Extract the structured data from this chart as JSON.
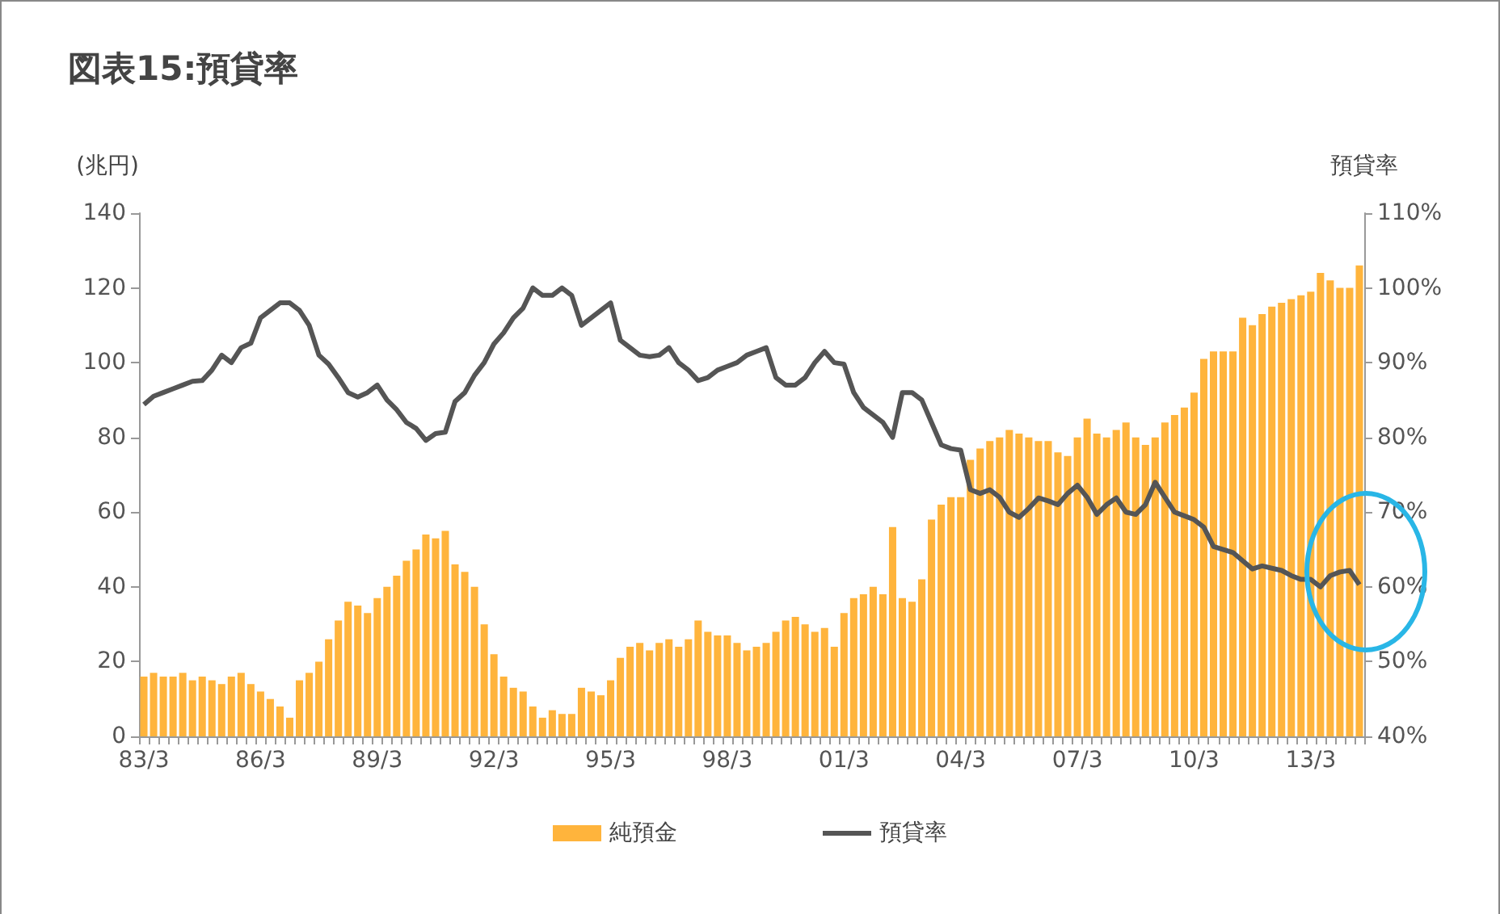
{
  "chart_data": {
    "type": "bar",
    "title": "図表15:預貸率",
    "ylabel": "(兆円)",
    "y2label": "預貸率",
    "categories": [
      "83/3",
      null,
      null,
      null,
      null,
      null,
      null,
      null,
      null,
      null,
      null,
      null,
      "86/3",
      null,
      null,
      null,
      null,
      null,
      null,
      null,
      null,
      null,
      null,
      null,
      "89/3",
      null,
      null,
      null,
      null,
      null,
      null,
      null,
      null,
      null,
      null,
      null,
      "92/3",
      null,
      null,
      null,
      null,
      null,
      null,
      null,
      null,
      null,
      null,
      null,
      "95/3",
      null,
      null,
      null,
      null,
      null,
      null,
      null,
      null,
      null,
      null,
      null,
      "98/3",
      null,
      null,
      null,
      null,
      null,
      null,
      null,
      null,
      null,
      null,
      null,
      "01/3",
      null,
      null,
      null,
      null,
      null,
      null,
      null,
      null,
      null,
      null,
      null,
      "04/3",
      null,
      null,
      null,
      null,
      null,
      null,
      null,
      null,
      null,
      null,
      null,
      "07/3",
      null,
      null,
      null,
      null,
      null,
      null,
      null,
      null,
      null,
      null,
      null,
      "10/3",
      null,
      null,
      null,
      null,
      null,
      null,
      null,
      null,
      null,
      null,
      null,
      "13/3",
      null,
      null,
      null,
      null,
      null
    ],
    "series": [
      {
        "name": "純預金",
        "color": "#ffb43c",
        "values": [
          16,
          17,
          16,
          16,
          17,
          15,
          16,
          15,
          14,
          16,
          17,
          14,
          12,
          10,
          8,
          5,
          15,
          17,
          20,
          26,
          31,
          36,
          35,
          33,
          37,
          40,
          43,
          47,
          50,
          54,
          53,
          55,
          46,
          44,
          40,
          30,
          22,
          16,
          13,
          12,
          8,
          5,
          7,
          6,
          6,
          13,
          12,
          11,
          15,
          21,
          24,
          25,
          23,
          25,
          26,
          24,
          26,
          31,
          28,
          27,
          27,
          25,
          23,
          24,
          25,
          28,
          31,
          32,
          30,
          28,
          29,
          24,
          33,
          37,
          38,
          40,
          38,
          56,
          37,
          36,
          42,
          58,
          62,
          64,
          64,
          74,
          77,
          79,
          80,
          82,
          81,
          80,
          79,
          79,
          76,
          75,
          80,
          85,
          81,
          80,
          82,
          84,
          80,
          78,
          80,
          84,
          86,
          88,
          92,
          101,
          103,
          103,
          103,
          112,
          110,
          113,
          115,
          116,
          117,
          118,
          119,
          124,
          122,
          120,
          120,
          126
        ]
      },
      {
        "name": "預貸率",
        "type": "line",
        "axis": "y2",
        "color": "#555555",
        "values": [
          84.4,
          85.5,
          86,
          86.5,
          87,
          87.5,
          87.6,
          89,
          91,
          90,
          92,
          92.6,
          96,
          97,
          98,
          98,
          97,
          95,
          91,
          89.8,
          88,
          86,
          85.4,
          86,
          87,
          85,
          83.7,
          82,
          81.2,
          79.6,
          80.5,
          80.7,
          84.8,
          86,
          88.3,
          90,
          92.5,
          94,
          96,
          97.3,
          100,
          99,
          99,
          100,
          99,
          95,
          96,
          97,
          98,
          93,
          92,
          91,
          90.8,
          91,
          92,
          90,
          89,
          87.6,
          88,
          89,
          89.5,
          90,
          91,
          91.5,
          92,
          88,
          87,
          87,
          88,
          90,
          91.5,
          90,
          89.8,
          86,
          84,
          83,
          82,
          80,
          86,
          86,
          85,
          82,
          79,
          78.5,
          78.3,
          73,
          72.5,
          73,
          72,
          70,
          69.3,
          70.5,
          71.9,
          71.5,
          71,
          72.5,
          73.6,
          72,
          69.7,
          71,
          71.9,
          70,
          69.7,
          71,
          74,
          72,
          70,
          69.5,
          69,
          68,
          65.4,
          65,
          64.6,
          63.5,
          62.4,
          62.8,
          62.5,
          62.2,
          61.5,
          61,
          61,
          60,
          61.5,
          62,
          62.2,
          60.3
        ]
      }
    ],
    "ylim": [
      0,
      140
    ],
    "yticks": [
      0,
      20,
      40,
      60,
      80,
      100,
      120,
      140
    ],
    "y2lim": [
      40,
      110
    ],
    "y2ticks": [
      {
        "value": 40,
        "label": "40%"
      },
      {
        "value": 50,
        "label": "50%"
      },
      {
        "value": 60,
        "label": "60%"
      },
      {
        "value": 70,
        "label": "70%"
      },
      {
        "value": 80,
        "label": "80%"
      },
      {
        "value": 90,
        "label": "90%"
      },
      {
        "value": 100,
        "label": "100%"
      },
      {
        "value": 110,
        "label": "110%"
      }
    ],
    "grid": false,
    "legend": "bottom",
    "marker": "none",
    "line_style": "solid"
  }
}
